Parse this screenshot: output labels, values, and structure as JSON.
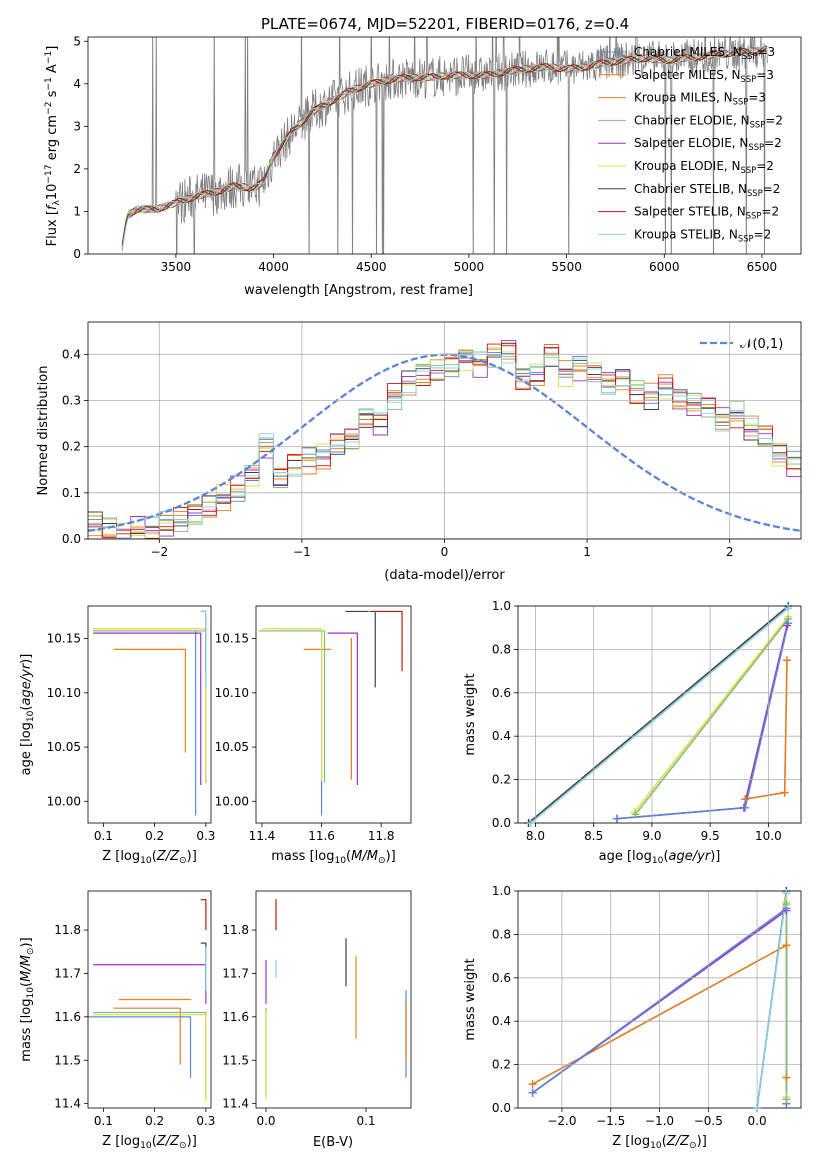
{
  "figure": {
    "title": "PLATE=0674, MJD=52201, FIBERID=0176, z=0.4"
  },
  "colors": {
    "Chabrier MILES": "#5b86d8",
    "Salpeter MILES": "#ff7f0e",
    "Kroupa MILES": "#e07b20",
    "Chabrier ELODIE": "#7fbf7f",
    "Salpeter ELODIE": "#a030c0",
    "Kroupa ELODIE": "#dddd44",
    "Chabrier STELIB": "#404040",
    "Salpeter STELIB": "#c01818",
    "Kroupa STELIB": "#88d0e8",
    "gauss": "#5b86d8",
    "data": "#808080"
  },
  "chart_data": [
    {
      "id": "spectrum",
      "type": "line",
      "title": "PLATE=0674, MJD=52201, FIBERID=0176, z=0.4",
      "xlabel": "wavelength [Angstrom, rest frame]",
      "ylabel": "Flux [f_λ 10^-17 erg cm^-2 s^-1 A^-1]",
      "xlim": [
        3050,
        6700
      ],
      "ylim": [
        0,
        5.1
      ],
      "xticks": [
        3500,
        4000,
        4500,
        5000,
        5500,
        6000,
        6500
      ],
      "yticks": [
        0,
        1,
        2,
        3,
        4,
        5
      ],
      "legend_position": "top-right",
      "series": [
        {
          "name": "Chabrier MILES, N_SSP=3"
        },
        {
          "name": "Salpeter MILES, N_SSP=3"
        },
        {
          "name": "Kroupa MILES, N_SSP=3"
        },
        {
          "name": "Chabrier ELODIE, N_SSP=2"
        },
        {
          "name": "Salpeter ELODIE, N_SSP=2"
        },
        {
          "name": "Kroupa ELODIE, N_SSP=2"
        },
        {
          "name": "Chabrier STELIB, N_SSP=2"
        },
        {
          "name": "Salpeter STELIB, N_SSP=2"
        },
        {
          "name": "Kroupa STELIB, N_SSP=2"
        }
      ],
      "model_continuum": [
        [
          3220,
          0
        ],
        [
          3250,
          0.9
        ],
        [
          3300,
          1.05
        ],
        [
          3400,
          1.05
        ],
        [
          3500,
          1.2
        ],
        [
          3600,
          1.35
        ],
        [
          3700,
          1.45
        ],
        [
          3800,
          1.6
        ],
        [
          3900,
          1.55
        ],
        [
          3950,
          1.7
        ],
        [
          4000,
          2.3
        ],
        [
          4100,
          2.9
        ],
        [
          4200,
          3.35
        ],
        [
          4300,
          3.6
        ],
        [
          4400,
          3.85
        ],
        [
          4500,
          4.0
        ],
        [
          4600,
          4.1
        ],
        [
          4700,
          4.15
        ],
        [
          4800,
          4.15
        ],
        [
          4900,
          4.2
        ],
        [
          5000,
          4.2
        ],
        [
          5100,
          4.2
        ],
        [
          5200,
          4.3
        ],
        [
          5300,
          4.35
        ],
        [
          5400,
          4.4
        ],
        [
          5500,
          4.35
        ],
        [
          5600,
          4.4
        ],
        [
          5700,
          4.5
        ],
        [
          5800,
          4.55
        ],
        [
          5900,
          4.6
        ],
        [
          6000,
          4.55
        ],
        [
          6100,
          4.6
        ],
        [
          6200,
          4.65
        ],
        [
          6300,
          4.7
        ],
        [
          6400,
          4.75
        ],
        [
          6530,
          4.8
        ]
      ]
    },
    {
      "id": "residuals",
      "type": "line",
      "xlabel": "(data-model)/error",
      "ylabel": "Normed distribution",
      "xlim": [
        -2.5,
        2.5
      ],
      "ylim": [
        0,
        0.47
      ],
      "xticks": [
        -2,
        -1,
        0,
        1,
        2
      ],
      "yticks": [
        0.0,
        0.1,
        0.2,
        0.3,
        0.4
      ],
      "grid": true,
      "legend_position": "top-right",
      "gauss_label": "𝒩(0,1)",
      "base_histogram": [
        0.03,
        0.02,
        0.01,
        0.02,
        0.02,
        0.03,
        0.04,
        0.05,
        0.07,
        0.09,
        0.11,
        0.14,
        0.2,
        0.13,
        0.16,
        0.17,
        0.18,
        0.21,
        0.22,
        0.26,
        0.25,
        0.31,
        0.34,
        0.36,
        0.37,
        0.38,
        0.39,
        0.38,
        0.4,
        0.41,
        0.35,
        0.36,
        0.4,
        0.36,
        0.37,
        0.36,
        0.34,
        0.35,
        0.32,
        0.31,
        0.33,
        0.3,
        0.29,
        0.29,
        0.26,
        0.27,
        0.24,
        0.22,
        0.18,
        0.16,
        0.16,
        0.13,
        0.12,
        0.1,
        0.1,
        0.07,
        0.07,
        0.06,
        0.06,
        0.05,
        0.05,
        0.04,
        0.04,
        0.04,
        0.05,
        0.04,
        0.04,
        0.04,
        0.03,
        0.04
      ],
      "bin_width": 0.1,
      "bin_start": -2.5
    },
    {
      "id": "age-vs-Z",
      "type": "scatter",
      "xlabel": "Z [log10(Z/Z⊙)]",
      "ylabel": "age  [log10(age/yr)]",
      "xlim": [
        0.07,
        0.31
      ],
      "ylim": [
        9.98,
        10.18
      ],
      "xticks": [
        0.1,
        0.2,
        0.3
      ],
      "yticks": [
        10.0,
        10.05,
        10.1,
        10.15
      ],
      "points": [
        {
          "series": "Chabrier MILES",
          "x": 0.28,
          "y": 10.157,
          "xerr_lo": 0.2,
          "yerr_lo": 0.17
        },
        {
          "series": "Salpeter MILES",
          "x": 0.26,
          "y": 10.14,
          "xerr_lo": 0.14,
          "yerr_lo": 0.095
        },
        {
          "series": "Kroupa MILES",
          "x": 0.3,
          "y": 10.15,
          "xerr_lo": 0.0,
          "yerr_lo": 0.13
        },
        {
          "series": "Chabrier ELODIE",
          "x": 0.3,
          "y": 10.157,
          "xerr_lo": 0.22,
          "yerr_lo": 0.14
        },
        {
          "series": "Salpeter ELODIE",
          "x": 0.29,
          "y": 10.155,
          "xerr_lo": 0.21,
          "yerr_lo": 0.14
        },
        {
          "series": "Kroupa ELODIE",
          "x": 0.3,
          "y": 10.159,
          "xerr_lo": 0.22,
          "yerr_lo": 0.14
        },
        {
          "series": "Chabrier STELIB",
          "x": 0.3,
          "y": 10.175,
          "xerr_lo": 0.01,
          "yerr_lo": 0.055
        },
        {
          "series": "Salpeter STELIB",
          "x": 0.3,
          "y": 10.175,
          "xerr_lo": 0.0,
          "yerr_lo": 0.0
        },
        {
          "series": "Kroupa STELIB",
          "x": 0.3,
          "y": 10.175,
          "xerr_lo": 0.01,
          "yerr_lo": 0.07
        }
      ]
    },
    {
      "id": "age-vs-mass",
      "type": "scatter",
      "xlabel": "mass [log10(M/M⊙)]",
      "ylabel": "",
      "xlim": [
        11.38,
        11.9
      ],
      "ylim": [
        9.98,
        10.18
      ],
      "xticks": [
        11.4,
        11.6,
        11.8
      ],
      "yticks": [
        10.0,
        10.05,
        10.1,
        10.15
      ],
      "points": [
        {
          "series": "Chabrier MILES",
          "x": 11.6,
          "y": 10.157,
          "xerr_lo": 0.15,
          "yerr_lo": 0.17
        },
        {
          "series": "Salpeter MILES",
          "x": 11.63,
          "y": 10.14,
          "xerr_lo": 0.09,
          "yerr_lo": 0.0
        },
        {
          "series": "Kroupa MILES",
          "x": 11.7,
          "y": 10.15,
          "xerr_lo": 0.0,
          "yerr_lo": 0.13
        },
        {
          "series": "Chabrier ELODIE",
          "x": 11.61,
          "y": 10.157,
          "xerr_lo": 0.22,
          "yerr_lo": 0.14
        },
        {
          "series": "Salpeter ELODIE",
          "x": 11.72,
          "y": 10.155,
          "xerr_lo": 0.1,
          "yerr_lo": 0.14
        },
        {
          "series": "Kroupa ELODIE",
          "x": 11.6,
          "y": 10.159,
          "xerr_lo": 0.2,
          "yerr_lo": 0.14
        },
        {
          "series": "Chabrier STELIB",
          "x": 11.78,
          "y": 10.175,
          "xerr_lo": 0.1,
          "yerr_lo": 0.07
        },
        {
          "series": "Salpeter STELIB",
          "x": 11.87,
          "y": 10.175,
          "xerr_lo": 0.1,
          "yerr_lo": 0.055
        },
        {
          "series": "Kroupa STELIB",
          "x": 11.76,
          "y": 10.175,
          "xerr_lo": 0.0,
          "yerr_lo": 0.0
        }
      ]
    },
    {
      "id": "massweight-vs-age",
      "type": "line",
      "xlabel": "age  [log10(age/yr)]",
      "ylabel": "mass weight",
      "xlim": [
        7.85,
        10.28
      ],
      "ylim": [
        0,
        1.0
      ],
      "xticks": [
        8.0,
        8.5,
        9.0,
        9.5,
        10.0
      ],
      "yticks": [
        0.0,
        0.2,
        0.4,
        0.6,
        0.8,
        1.0
      ],
      "grid": true,
      "series": [
        {
          "series": "Chabrier STELIB",
          "x": [
            7.94,
            10.17
          ],
          "y": [
            0.0,
            1.0
          ]
        },
        {
          "series": "Kroupa STELIB",
          "x": [
            7.96,
            10.17
          ],
          "y": [
            0.0,
            0.99
          ]
        },
        {
          "series": "Kroupa ELODIE",
          "x": [
            8.85,
            10.17
          ],
          "y": [
            0.05,
            0.95
          ]
        },
        {
          "series": "Chabrier ELODIE",
          "x": [
            8.86,
            10.17
          ],
          "y": [
            0.04,
            0.94
          ]
        },
        {
          "series": "Kroupa MILES",
          "x": [
            9.8,
            10.14,
            10.16
          ],
          "y": [
            0.11,
            0.14,
            0.75
          ]
        },
        {
          "series": "Salpeter ELODIE",
          "x": [
            8.7,
            9.79,
            10.16
          ],
          "y": [
            0.02,
            0.07,
            0.91
          ]
        },
        {
          "series": "Chabrier MILES",
          "x": [
            8.7,
            9.8,
            10.17
          ],
          "y": [
            0.02,
            0.07,
            0.92
          ]
        }
      ]
    },
    {
      "id": "mass-vs-Z",
      "type": "scatter",
      "xlabel": "Z [log10(Z/Z⊙)]",
      "ylabel": "mass [log10(M/M⊙)]",
      "xlim": [
        0.07,
        0.31
      ],
      "ylim": [
        11.39,
        11.89
      ],
      "xticks": [
        0.1,
        0.2,
        0.3
      ],
      "yticks": [
        11.4,
        11.5,
        11.6,
        11.7,
        11.8
      ],
      "points": [
        {
          "series": "Chabrier MILES",
          "x": 0.27,
          "y": 11.6,
          "xerr_lo": 0.2,
          "yerr_lo": 0.14
        },
        {
          "series": "Salpeter MILES",
          "x": 0.27,
          "y": 11.64,
          "xerr_lo": 0.14,
          "yerr_lo": 0.0
        },
        {
          "series": "Kroupa MILES",
          "x": 0.25,
          "y": 11.62,
          "xerr_lo": 0.13,
          "yerr_lo": 0.13
        },
        {
          "series": "Chabrier ELODIE",
          "x": 0.3,
          "y": 11.61,
          "xerr_lo": 0.22,
          "yerr_lo": 0.19
        },
        {
          "series": "Salpeter ELODIE",
          "x": 0.3,
          "y": 11.72,
          "xerr_lo": 0.22,
          "yerr_lo": 0.09
        },
        {
          "series": "Kroupa ELODIE",
          "x": 0.3,
          "y": 11.605,
          "xerr_lo": 0.22,
          "yerr_lo": 0.2
        },
        {
          "series": "Chabrier STELIB",
          "x": 0.3,
          "y": 11.77,
          "xerr_lo": 0.01,
          "yerr_lo": 0.11
        },
        {
          "series": "Salpeter STELIB",
          "x": 0.3,
          "y": 11.87,
          "xerr_lo": 0.01,
          "yerr_lo": 0.07
        },
        {
          "series": "Kroupa STELIB",
          "x": 0.3,
          "y": 11.76,
          "xerr_lo": 0.0,
          "yerr_lo": 0.1
        }
      ]
    },
    {
      "id": "mass-vs-ebv",
      "type": "scatter",
      "xlabel": "E(B-V)",
      "ylabel": "",
      "xlim": [
        -0.01,
        0.145
      ],
      "ylim": [
        11.39,
        11.89
      ],
      "xticks": [
        0.0,
        0.1
      ],
      "yticks": [
        11.4,
        11.5,
        11.6,
        11.7,
        11.8
      ],
      "points": [
        {
          "series": "Chabrier MILES",
          "x": 0.14,
          "y": 11.66,
          "yerr_lo": 0.2
        },
        {
          "series": "Salpeter MILES",
          "x": 0.09,
          "y": 11.74,
          "yerr_lo": 0.19
        },
        {
          "series": "Kroupa MILES",
          "x": 0.14,
          "y": 11.63,
          "yerr_lo": 0.13
        },
        {
          "series": "Chabrier ELODIE",
          "x": 0.0,
          "y": 11.62,
          "yerr_lo": 0.2
        },
        {
          "series": "Salpeter ELODIE",
          "x": 0.0,
          "y": 11.73,
          "yerr_lo": 0.1
        },
        {
          "series": "Kroupa ELODIE",
          "x": 0.0,
          "y": 11.61,
          "yerr_lo": 0.2
        },
        {
          "series": "Chabrier STELIB",
          "x": 0.08,
          "y": 11.78,
          "yerr_lo": 0.11
        },
        {
          "series": "Salpeter STELIB",
          "x": 0.01,
          "y": 11.87,
          "yerr_lo": 0.07
        },
        {
          "series": "Kroupa STELIB",
          "x": 0.01,
          "y": 11.73,
          "yerr_lo": 0.04
        }
      ]
    },
    {
      "id": "massweight-vs-Z",
      "type": "line",
      "xlabel": "Z [log10(Z/Z⊙)]",
      "ylabel": "mass weight",
      "xlim": [
        -2.45,
        0.45
      ],
      "ylim": [
        0,
        1.0
      ],
      "xticks": [
        -2.0,
        -1.5,
        -1.0,
        -0.5,
        0.0
      ],
      "yticks": [
        0.0,
        0.2,
        0.4,
        0.6,
        0.8,
        1.0
      ],
      "grid": true,
      "series": [
        {
          "series": "Kroupa MILES",
          "x": [
            -2.3,
            0.3,
            0.3
          ],
          "y": [
            0.11,
            0.75,
            0.14
          ]
        },
        {
          "series": "Salpeter ELODIE",
          "x": [
            -2.3,
            0.3,
            0.3
          ],
          "y": [
            0.07,
            0.91,
            0.02
          ]
        },
        {
          "series": "Chabrier MILES",
          "x": [
            -2.3,
            0.3,
            0.3
          ],
          "y": [
            0.07,
            0.92,
            0.02
          ]
        },
        {
          "series": "Chabrier STELIB",
          "x": [
            0.0,
            0.3
          ],
          "y": [
            0.0,
            1.0
          ]
        },
        {
          "series": "Kroupa STELIB",
          "x": [
            0.0,
            0.3
          ],
          "y": [
            0.0,
            0.99
          ]
        },
        {
          "series": "Kroupa ELODIE",
          "x": [
            0.3,
            0.3
          ],
          "y": [
            0.05,
            0.95
          ]
        },
        {
          "series": "Chabrier ELODIE",
          "x": [
            0.3,
            0.3
          ],
          "y": [
            0.04,
            0.94
          ]
        }
      ]
    }
  ]
}
